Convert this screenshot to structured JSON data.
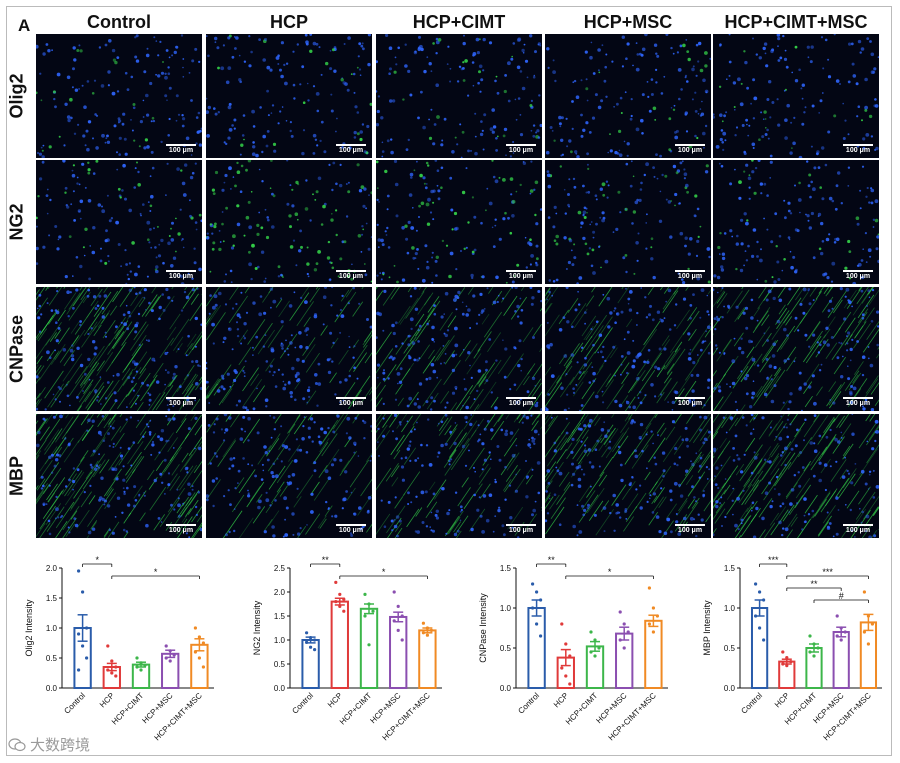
{
  "figure": {
    "panel_letter": "A",
    "columns": [
      "Control",
      "HCP",
      "HCP+CIMT",
      "HCP+MSC",
      "HCP+CIMT+MSC"
    ],
    "rows": [
      "Olig2",
      "NG2",
      "CNPase",
      "MBP"
    ],
    "scale_bar_label": "100 μm",
    "colors": {
      "nuclei": "#2f66ff",
      "marker": "#35d64a",
      "background": "#030614"
    },
    "watermark": "大数跨境"
  },
  "chart_data": [
    {
      "type": "bar",
      "categories": [
        "Control",
        "HCP",
        "HCP+CIMT",
        "HCP+MSC",
        "HCP+CIMT+MSC"
      ],
      "values": [
        1.0,
        0.35,
        0.39,
        0.57,
        0.72
      ],
      "errors": [
        0.22,
        0.06,
        0.04,
        0.06,
        0.1
      ],
      "points": [
        [
          1.95,
          1.6,
          1.0,
          0.9,
          0.7,
          0.5,
          0.3
        ],
        [
          0.7,
          0.45,
          0.35,
          0.3,
          0.25,
          0.2
        ],
        [
          0.5,
          0.42,
          0.38,
          0.35,
          0.3
        ],
        [
          0.7,
          0.62,
          0.55,
          0.5,
          0.45
        ],
        [
          1.0,
          0.85,
          0.75,
          0.6,
          0.5,
          0.35
        ]
      ],
      "ylabel": "Olig2 Intensity",
      "ylim": [
        0,
        2.0
      ],
      "yticks": [
        "0.0",
        "0.5",
        "1.0",
        "1.5",
        "2.0"
      ],
      "colors": [
        "#2a5caa",
        "#e03a3a",
        "#3cb64a",
        "#8b4fb0",
        "#f08a24"
      ],
      "significance": [
        {
          "from": 0,
          "to": 1,
          "label": "*"
        },
        {
          "from": 1,
          "to": 4,
          "label": "*"
        }
      ]
    },
    {
      "type": "bar",
      "categories": [
        "Control",
        "HCP",
        "HCP+CIMT",
        "HCP+MSC",
        "HCP+CIMT+MSC"
      ],
      "values": [
        1.0,
        1.8,
        1.65,
        1.48,
        1.2
      ],
      "errors": [
        0.06,
        0.07,
        0.1,
        0.1,
        0.05
      ],
      "points": [
        [
          1.15,
          1.05,
          1.0,
          0.95,
          0.85,
          0.8
        ],
        [
          2.2,
          1.95,
          1.85,
          1.8,
          1.7,
          1.6
        ],
        [
          1.95,
          1.75,
          1.6,
          1.5,
          0.9
        ],
        [
          2.0,
          1.7,
          1.5,
          1.4,
          1.2,
          1.0
        ],
        [
          1.35,
          1.25,
          1.2,
          1.15,
          1.1
        ]
      ],
      "ylabel": "NG2 Intensity",
      "ylim": [
        0,
        2.5
      ],
      "yticks": [
        "0.0",
        "0.5",
        "1.0",
        "1.5",
        "2.0",
        "2.5"
      ],
      "colors": [
        "#2a5caa",
        "#e03a3a",
        "#3cb64a",
        "#8b4fb0",
        "#f08a24"
      ],
      "significance": [
        {
          "from": 0,
          "to": 1,
          "label": "**"
        },
        {
          "from": 1,
          "to": 4,
          "label": "*"
        }
      ]
    },
    {
      "type": "bar",
      "categories": [
        "Control",
        "HCP",
        "HCP+CIMT",
        "HCP+MSC",
        "HCP+CIMT+MSC"
      ],
      "values": [
        1.0,
        0.38,
        0.52,
        0.68,
        0.84
      ],
      "errors": [
        0.1,
        0.1,
        0.06,
        0.08,
        0.07
      ],
      "points": [
        [
          1.3,
          1.2,
          1.1,
          1.0,
          0.8,
          0.65
        ],
        [
          0.8,
          0.55,
          0.4,
          0.25,
          0.15,
          0.05
        ],
        [
          0.7,
          0.6,
          0.5,
          0.45,
          0.4
        ],
        [
          0.95,
          0.8,
          0.7,
          0.6,
          0.5
        ],
        [
          1.25,
          1.0,
          0.9,
          0.8,
          0.7
        ]
      ],
      "ylabel": "CNPase Intensity",
      "ylim": [
        0,
        1.5
      ],
      "yticks": [
        "0.0",
        "0.5",
        "1.0",
        "1.5"
      ],
      "colors": [
        "#2a5caa",
        "#e03a3a",
        "#3cb64a",
        "#8b4fb0",
        "#f08a24"
      ],
      "significance": [
        {
          "from": 0,
          "to": 1,
          "label": "**"
        },
        {
          "from": 1,
          "to": 4,
          "label": "*"
        }
      ]
    },
    {
      "type": "bar",
      "categories": [
        "Control",
        "HCP",
        "HCP+CIMT",
        "HCP+MSC",
        "HCP+CIMT+MSC"
      ],
      "values": [
        1.0,
        0.33,
        0.5,
        0.7,
        0.82
      ],
      "errors": [
        0.1,
        0.03,
        0.05,
        0.06,
        0.1
      ],
      "points": [
        [
          1.3,
          1.2,
          1.1,
          0.9,
          0.75,
          0.6
        ],
        [
          0.45,
          0.38,
          0.33,
          0.3,
          0.28
        ],
        [
          0.65,
          0.55,
          0.5,
          0.45,
          0.4
        ],
        [
          0.9,
          0.75,
          0.7,
          0.65,
          0.6
        ],
        [
          1.2,
          0.9,
          0.8,
          0.7,
          0.55
        ]
      ],
      "ylabel": "MBP Intensity",
      "ylim": [
        0,
        1.5
      ],
      "yticks": [
        "0.0",
        "0.5",
        "1.0",
        "1.5"
      ],
      "colors": [
        "#2a5caa",
        "#e03a3a",
        "#3cb64a",
        "#8b4fb0",
        "#f08a24"
      ],
      "significance": [
        {
          "from": 0,
          "to": 1,
          "label": "***"
        },
        {
          "from": 1,
          "to": 4,
          "label": "***"
        },
        {
          "from": 1,
          "to": 3,
          "label": "**"
        },
        {
          "from": 2,
          "to": 4,
          "label": "#"
        }
      ]
    }
  ]
}
